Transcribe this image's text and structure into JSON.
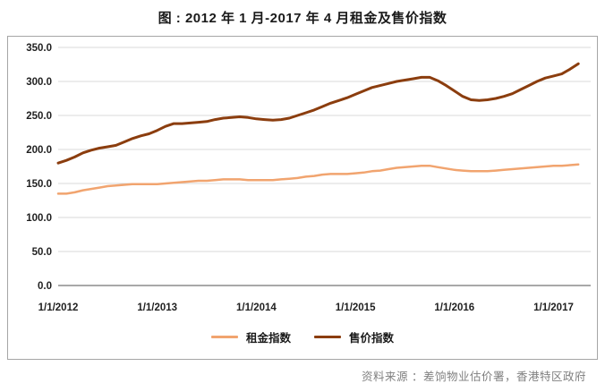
{
  "page": {
    "title": "图 : 2012 年 1 月-2017 年 4 月租金及售价指数",
    "source_note": "资料来源 ：差饷物业估价署，香港特区政府"
  },
  "colors": {
    "rent_line": "#F1A46F",
    "price_line": "#8B3D0E",
    "gridline": "#D9D9D9",
    "axis_line": "#8C8C8C",
    "panel_border": "#A6A6A6",
    "axis_text": "#1F1F1F",
    "source_text": "#7F7F7F"
  },
  "chart_data": {
    "type": "line",
    "title": "图 : 2012 年 1 月-2017 年 4 月租金及售价指数",
    "x_frequency": "monthly",
    "x_start": "1/2012",
    "x_end": "4/2017",
    "x_tick_labels": [
      "1/1/2012",
      "1/1/2013",
      "1/1/2014",
      "1/1/2015",
      "1/1/2016",
      "1/1/2017"
    ],
    "x_tick_month_indices": [
      0,
      12,
      24,
      36,
      48,
      60
    ],
    "ylim": [
      0,
      350
    ],
    "y_tick_step": 50,
    "y_tick_labels": [
      "0.0",
      "50.0",
      "100.0",
      "150.0",
      "200.0",
      "250.0",
      "300.0",
      "350.0"
    ],
    "grid": "horizontal",
    "legend_position": "bottom",
    "series": [
      {
        "name": "租金指数",
        "color": "#F1A46F",
        "stroke_width": 2.5,
        "values": [
          135,
          135,
          137,
          140,
          142,
          144,
          146,
          147,
          148,
          149,
          149,
          149,
          149,
          150,
          151,
          152,
          153,
          154,
          154,
          155,
          156,
          156,
          156,
          155,
          155,
          155,
          155,
          156,
          157,
          158,
          160,
          161,
          163,
          164,
          164,
          164,
          165,
          166,
          168,
          169,
          171,
          173,
          174,
          175,
          176,
          176,
          174,
          172,
          170,
          169,
          168,
          168,
          168,
          169,
          170,
          171,
          172,
          173,
          174,
          175,
          176,
          176,
          177,
          178
        ]
      },
      {
        "name": "售价指数",
        "color": "#8B3D0E",
        "stroke_width": 3,
        "values": [
          180,
          184,
          189,
          195,
          199,
          202,
          204,
          206,
          211,
          216,
          220,
          223,
          228,
          234,
          238,
          238,
          239,
          240,
          241,
          244,
          246,
          247,
          248,
          247,
          245,
          244,
          243,
          244,
          246,
          250,
          254,
          258,
          263,
          268,
          272,
          276,
          281,
          286,
          291,
          294,
          297,
          300,
          302,
          304,
          306,
          306,
          301,
          294,
          286,
          278,
          273,
          272,
          273,
          275,
          278,
          282,
          288,
          294,
          300,
          305,
          308,
          311,
          318,
          326
        ]
      }
    ]
  }
}
